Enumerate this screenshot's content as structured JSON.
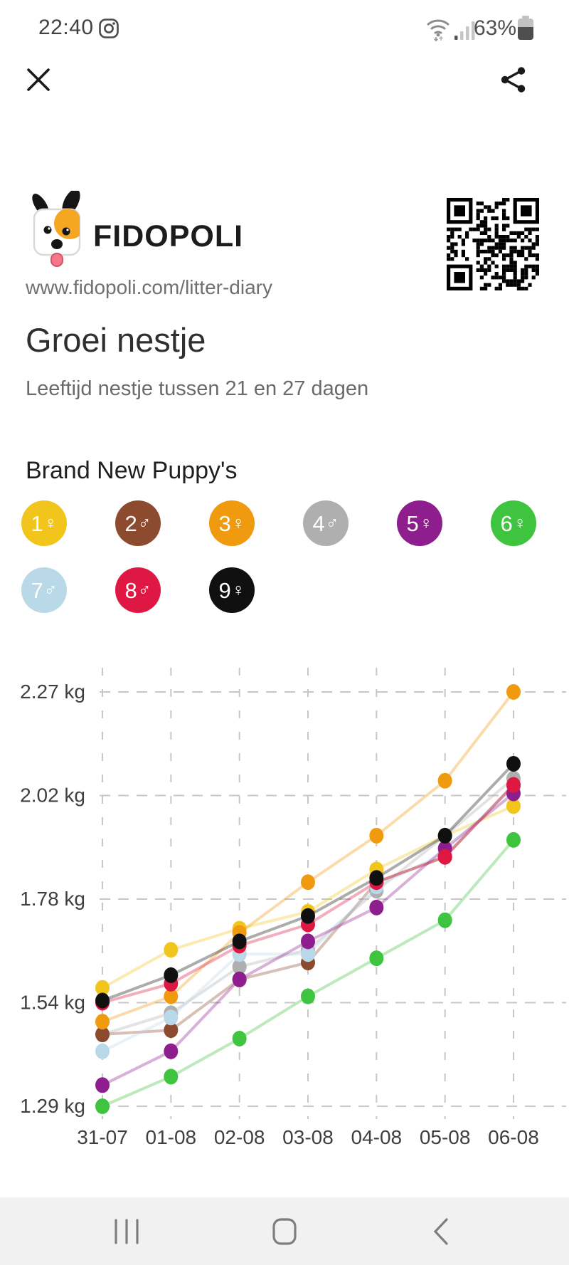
{
  "status_bar": {
    "time": "22:40",
    "notification_icons": [
      "instagram-icon"
    ],
    "wifi": "connected",
    "battery_percent": "63%"
  },
  "toolbar": {
    "close": "close",
    "share": "share"
  },
  "header": {
    "brand": "FIDOPOLI",
    "url": "www.fidopoli.com/litter-diary",
    "qr_code": "qr-code"
  },
  "page": {
    "title": "Groei nestje",
    "subtitle": "Leeftijd nestje tussen 21 en 27 dagen"
  },
  "litter": {
    "heading": "Brand New Puppy's",
    "puppies": [
      {
        "num": "1",
        "sex_symbol": "♀",
        "color": "#F2C51D"
      },
      {
        "num": "2",
        "sex_symbol": "♂",
        "color": "#8C4A2F"
      },
      {
        "num": "3",
        "sex_symbol": "♀",
        "color": "#F09A10"
      },
      {
        "num": "4",
        "sex_symbol": "♂",
        "color": "#AFAFAF"
      },
      {
        "num": "5",
        "sex_symbol": "♀",
        "color": "#8E1D8E"
      },
      {
        "num": "6",
        "sex_symbol": "♀",
        "color": "#3EC43E"
      },
      {
        "num": "7",
        "sex_symbol": "♂",
        "color": "#B9D8E8"
      },
      {
        "num": "8",
        "sex_symbol": "♂",
        "color": "#DE1843"
      },
      {
        "num": "9",
        "sex_symbol": "♀",
        "color": "#101010"
      }
    ]
  },
  "chart_data": {
    "type": "line",
    "unit": "kg",
    "x_labels": [
      "31-07",
      "01-08",
      "02-08",
      "03-08",
      "04-08",
      "05-08",
      "06-08"
    ],
    "y_tick_labels": [
      "2.27 kg",
      "2.02 kg",
      "1.78 kg",
      "1.54 kg",
      "1.29 kg"
    ],
    "y_tick_values": [
      2.27,
      2.025,
      1.78,
      1.535,
      1.29
    ],
    "ylim": [
      1.29,
      2.27
    ],
    "grid": "dashed",
    "legend_position": "none",
    "series": [
      {
        "name": "1 ♀",
        "color": "#F2C51D",
        "values": [
          1.57,
          1.66,
          1.71,
          1.75,
          1.85,
          1.93,
          2.0
        ]
      },
      {
        "name": "2 ♂",
        "color": "#8C4A2F",
        "values": [
          1.46,
          1.47,
          1.59,
          1.63,
          1.82,
          1.88,
          2.05
        ]
      },
      {
        "name": "3 ♀",
        "color": "#F09A10",
        "values": [
          1.49,
          1.55,
          1.7,
          1.82,
          1.93,
          2.06,
          2.27
        ]
      },
      {
        "name": "4 ♂",
        "color": "#AFAFAF",
        "values": [
          1.46,
          1.51,
          1.62,
          1.66,
          1.8,
          1.93,
          2.065
        ]
      },
      {
        "name": "5 ♀",
        "color": "#8E1D8E",
        "values": [
          1.34,
          1.42,
          1.59,
          1.68,
          1.76,
          1.9,
          2.03
        ]
      },
      {
        "name": "6 ♀",
        "color": "#3EC43E",
        "values": [
          1.29,
          1.36,
          1.45,
          1.55,
          1.64,
          1.73,
          1.92
        ]
      },
      {
        "name": "7 ♂",
        "color": "#B9D8E8",
        "values": [
          1.42,
          1.5,
          1.65,
          1.65,
          1.81,
          1.89,
          2.045
        ]
      },
      {
        "name": "8 ♂",
        "color": "#DE1843",
        "values": [
          1.535,
          1.58,
          1.67,
          1.72,
          1.82,
          1.88,
          2.05
        ]
      },
      {
        "name": "9 ♀",
        "color": "#101010",
        "values": [
          1.54,
          1.6,
          1.68,
          1.74,
          1.83,
          1.93,
          2.1
        ]
      }
    ],
    "draw_order": [
      3,
      1,
      0,
      2,
      6,
      4,
      7,
      8,
      5
    ]
  },
  "nav_bar": {
    "buttons": [
      "recents",
      "home",
      "back"
    ]
  }
}
